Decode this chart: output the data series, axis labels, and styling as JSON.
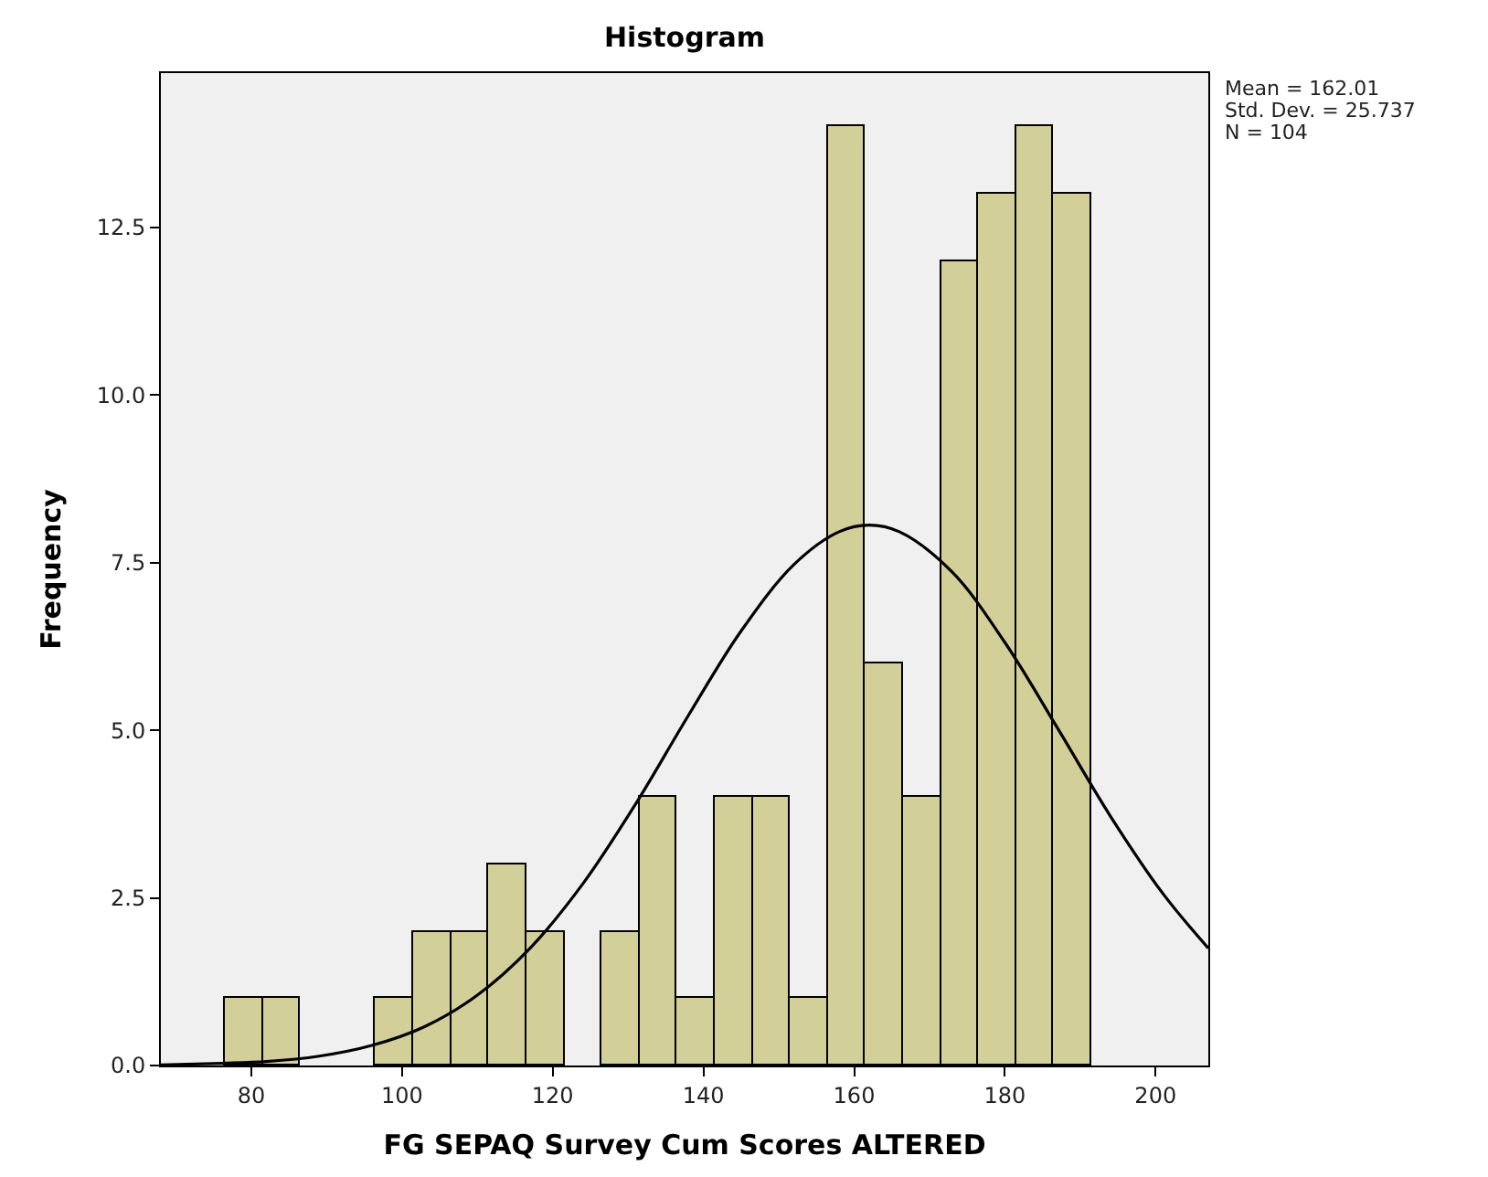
{
  "chart_data": {
    "type": "histogram",
    "title": "Histogram",
    "xlabel": "FG SEPAQ Survey Cum Scores ALTERED",
    "ylabel": "Frequency",
    "bins": [
      76.5,
      81.5,
      86.5,
      91.5,
      96.5,
      101.5,
      106.5,
      111.5,
      116.5,
      121.5,
      126.5,
      131.5,
      136.5,
      141.5,
      146.5,
      151.5,
      156.5,
      161.5,
      166.5,
      171.5,
      176.5,
      181.5,
      186.5,
      191.5
    ],
    "values": [
      1,
      1,
      0,
      0,
      1,
      2,
      2,
      3,
      2,
      0,
      2,
      4,
      1,
      4,
      4,
      1,
      14,
      6,
      4,
      12,
      13,
      14,
      13
    ],
    "color": "#d3cf98",
    "series": [
      {
        "type": "line",
        "color": "#000000",
        "x": [
          68,
          75,
          82,
          89,
          96,
          103,
          110,
          117,
          124,
          131,
          138,
          145,
          152,
          158,
          162,
          166,
          173,
          180,
          187,
          194,
          201,
          207
        ],
        "values": [
          0.01,
          0.03,
          0.06,
          0.14,
          0.3,
          0.58,
          1.05,
          1.75,
          2.71,
          3.9,
          5.22,
          6.48,
          7.47,
          7.96,
          8.06,
          7.96,
          7.36,
          6.31,
          5.03,
          3.72,
          2.56,
          1.75
        ]
      }
    ],
    "xlim": [
      68,
      207
    ],
    "xticks": [
      80,
      100,
      120,
      140,
      160,
      180,
      200
    ],
    "ylim": [
      0,
      14.8
    ],
    "yticks": [
      {
        "value": 0,
        "label": "0.0"
      },
      {
        "value": 2.5,
        "label": "2.5"
      },
      {
        "value": 5,
        "label": "5.0"
      },
      {
        "value": 7.5,
        "label": "7.5"
      },
      {
        "value": 10,
        "label": "10.0"
      },
      {
        "value": 12.5,
        "label": "12.5"
      }
    ],
    "grid": false,
    "annotations": [
      "Mean = 162.01",
      "Std. Dev. = 25.737",
      "N = 104"
    ]
  }
}
